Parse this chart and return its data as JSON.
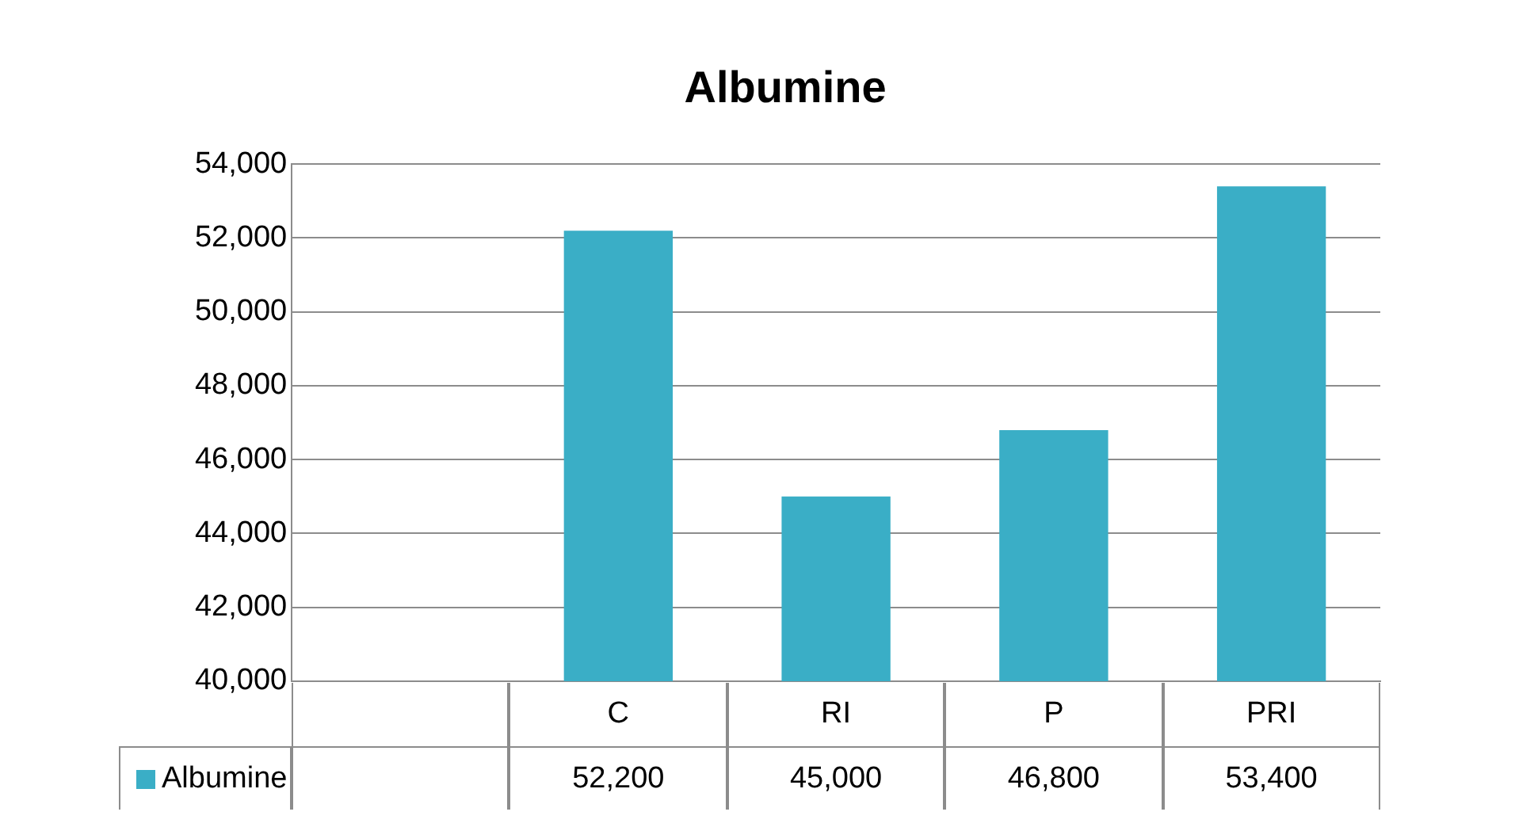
{
  "chart_data": {
    "type": "bar",
    "title": "Albumine",
    "categories": [
      null,
      "C",
      "RI",
      "P",
      "PRI"
    ],
    "series": [
      {
        "name": "Albumine",
        "color": "#3aaec6",
        "values": [
          null,
          52200,
          45000,
          46800,
          53400
        ],
        "value_labels": [
          null,
          "52,200",
          "45,000",
          "46,800",
          "53,400"
        ]
      }
    ],
    "ylim": [
      40000,
      54000
    ],
    "yticks": [
      {
        "value": 40000,
        "label": "40,000"
      },
      {
        "value": 42000,
        "label": "42,000"
      },
      {
        "value": 44000,
        "label": "44,000"
      },
      {
        "value": 46000,
        "label": "46,000"
      },
      {
        "value": 48000,
        "label": "48,000"
      },
      {
        "value": 50000,
        "label": "50,000"
      },
      {
        "value": 52000,
        "label": "52,000"
      },
      {
        "value": 54000,
        "label": "54,000"
      }
    ],
    "grid": "y",
    "legend": "bottom left"
  }
}
